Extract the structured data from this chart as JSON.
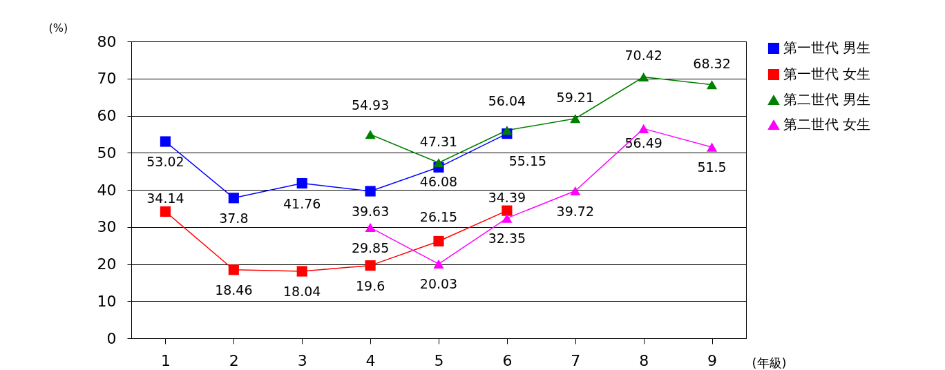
{
  "chart_data": {
    "type": "line",
    "xlabel": "(年級)",
    "ylabel": "(%)",
    "categories": [
      "1",
      "2",
      "3",
      "4",
      "5",
      "6",
      "7",
      "8",
      "9"
    ],
    "series": [
      {
        "name": "第一世代 男生",
        "color": "#0000ff",
        "marker": "square",
        "values": [
          53.02,
          37.8,
          41.76,
          39.63,
          46.08,
          55.15,
          null,
          null,
          null
        ]
      },
      {
        "name": "第一世代 女生",
        "color": "#ff0000",
        "marker": "square",
        "values": [
          34.14,
          18.46,
          18.04,
          19.6,
          26.15,
          34.39,
          null,
          null,
          null
        ]
      },
      {
        "name": "第二世代 男生",
        "color": "#008000",
        "marker": "triangle",
        "values": [
          null,
          null,
          null,
          54.93,
          47.31,
          56.04,
          59.21,
          70.42,
          68.32
        ]
      },
      {
        "name": "第二世代 女生",
        "color": "#ff00ff",
        "marker": "triangle",
        "values": [
          null,
          null,
          null,
          29.85,
          20.03,
          32.35,
          39.72,
          56.49,
          51.5
        ]
      }
    ],
    "ylim": [
      0,
      80
    ],
    "yticks": [
      0,
      10,
      20,
      30,
      40,
      50,
      60,
      70,
      80
    ],
    "grid": "y",
    "legend": "right",
    "data_labels": true,
    "line_style": "solid"
  }
}
